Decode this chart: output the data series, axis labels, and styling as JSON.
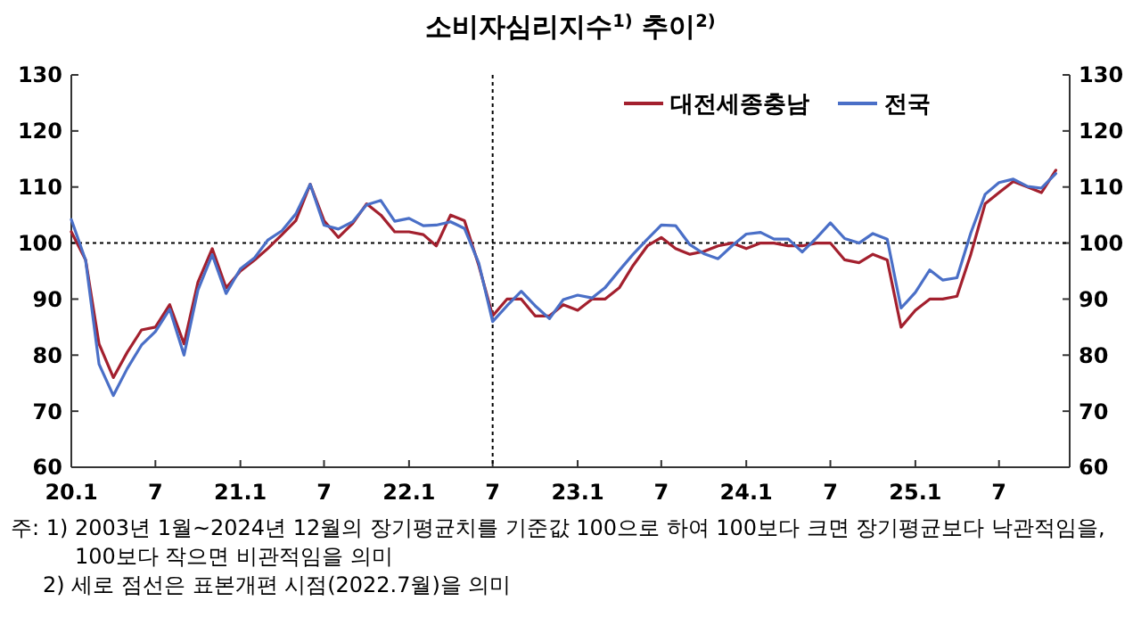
{
  "chart_data": {
    "type": "line",
    "title": "소비자심리지수$^{1)}$ 추이$^{2)}$",
    "x": [
      "2020-01",
      "2020-02",
      "2020-03",
      "2020-04",
      "2020-05",
      "2020-06",
      "2020-07",
      "2020-08",
      "2020-09",
      "2020-10",
      "2020-11",
      "2020-12",
      "2021-01",
      "2021-02",
      "2021-03",
      "2021-04",
      "2021-05",
      "2021-06",
      "2021-07",
      "2021-08",
      "2021-09",
      "2021-10",
      "2021-11",
      "2021-12",
      "2022-01",
      "2022-02",
      "2022-03",
      "2022-04",
      "2022-05",
      "2022-06",
      "2022-07",
      "2022-08",
      "2022-09",
      "2022-10",
      "2022-11",
      "2022-12",
      "2023-01",
      "2023-02",
      "2023-03",
      "2023-04",
      "2023-05",
      "2023-06",
      "2023-07",
      "2023-08",
      "2023-09",
      "2023-10",
      "2023-11",
      "2023-12",
      "2024-01",
      "2024-02",
      "2024-03",
      "2024-04",
      "2024-05",
      "2024-06",
      "2024-07",
      "2024-08",
      "2024-09",
      "2024-10",
      "2024-11",
      "2024-12",
      "2025-01",
      "2025-02",
      "2025-03",
      "2025-04",
      "2025-05",
      "2025-06",
      "2025-07",
      "2025-08",
      "2025-09",
      "2025-10",
      "2025-11"
    ],
    "series": [
      {
        "name": "대전세종충남",
        "color": "#a3202e",
        "values": [
          102.0,
          97.0,
          82.0,
          76.0,
          80.5,
          84.5,
          85.0,
          89.0,
          82.0,
          93.0,
          99.0,
          92.0,
          95.0,
          97.0,
          99.0,
          101.5,
          104.0,
          110.5,
          104.0,
          101.0,
          103.5,
          107.0,
          105.0,
          102.0,
          102.0,
          101.5,
          99.5,
          105.0,
          104.0,
          96.0,
          87.0,
          90.0,
          90.0,
          87.0,
          87.0,
          89.0,
          88.0,
          90.0,
          90.0,
          92.0,
          96.0,
          99.5,
          101.0,
          99.0,
          98.0,
          98.5,
          99.5,
          100.0,
          99.0,
          100.0,
          100.0,
          99.5,
          99.5,
          100.0,
          100.0,
          97.0,
          96.5,
          98.0,
          97.0,
          85.0,
          88.0,
          90.0,
          90.0,
          90.5,
          98.0,
          107.0,
          109.0,
          111.0,
          110.0,
          109.0,
          113.0
        ]
      },
      {
        "name": "전국",
        "color": "#4a6fc7",
        "values": [
          104.2,
          96.9,
          78.4,
          72.8,
          77.6,
          81.8,
          84.2,
          88.2,
          80.0,
          91.6,
          97.9,
          91.0,
          95.4,
          97.4,
          100.5,
          102.2,
          105.2,
          110.5,
          103.2,
          102.5,
          103.8,
          106.8,
          107.6,
          103.9,
          104.4,
          103.1,
          103.2,
          103.8,
          102.6,
          96.4,
          86.0,
          88.8,
          91.4,
          88.8,
          86.5,
          89.9,
          90.7,
          90.2,
          92.0,
          95.1,
          98.0,
          100.7,
          103.2,
          103.1,
          99.7,
          98.1,
          97.2,
          99.5,
          101.6,
          101.9,
          100.7,
          100.7,
          98.4,
          100.9,
          103.6,
          100.8,
          100.0,
          101.7,
          100.7,
          88.4,
          91.2,
          95.2,
          93.4,
          93.8,
          101.8,
          108.7,
          110.8,
          111.4,
          110.1,
          109.8,
          112.4
        ]
      }
    ],
    "xlim": [
      "2020-01",
      "2025-12"
    ],
    "xticks": [
      {
        "value": "2020-01",
        "label": "20.1"
      },
      {
        "value": "2020-07",
        "label": "7"
      },
      {
        "value": "2021-01",
        "label": "21.1"
      },
      {
        "value": "2021-07",
        "label": "7"
      },
      {
        "value": "2022-01",
        "label": "22.1"
      },
      {
        "value": "2022-07",
        "label": "7"
      },
      {
        "value": "2023-01",
        "label": "23.1"
      },
      {
        "value": "2023-07",
        "label": "7"
      },
      {
        "value": "2024-01",
        "label": "24.1"
      },
      {
        "value": "2024-07",
        "label": "7"
      },
      {
        "value": "2025-01",
        "label": "25.1"
      },
      {
        "value": "2025-07",
        "label": "7"
      }
    ],
    "ylim": [
      60,
      130
    ],
    "yticks": [
      60,
      70,
      80,
      90,
      100,
      110,
      120,
      130
    ],
    "y2lim": [
      60,
      130
    ],
    "y2ticks": [
      60,
      70,
      80,
      90,
      100,
      110,
      120,
      130
    ],
    "ref_lines": [
      {
        "axis": "y",
        "value": 100,
        "color": "#000000",
        "line_style": "dotted"
      },
      {
        "axis": "x",
        "value": "2022-07",
        "color": "#000000",
        "line_style": "dotted"
      }
    ],
    "annotations": [
      "주: 1) 2003년 1월~2024년 12월의 장기평균치를 기준값 100으로 하여 100보다 크면 장기평균보다 낙관적임을, 100보다 작으면 비관적임을 의미",
      "2) 세로 점선은 표본개편 시점(2022.7월)을 의미"
    ],
    "legend": "top right",
    "grid": false,
    "marker": "none",
    "line_style": "solid"
  }
}
